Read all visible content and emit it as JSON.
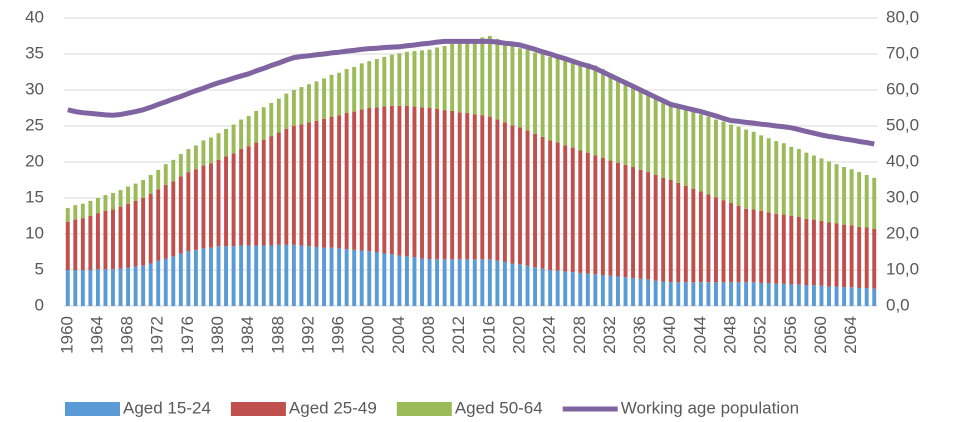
{
  "chart_data": {
    "type": "bar",
    "stacked": true,
    "categories": [
      "1960",
      null,
      null,
      null,
      "1964",
      null,
      null,
      null,
      "1968",
      null,
      null,
      null,
      "1972",
      null,
      null,
      null,
      "1976",
      null,
      null,
      null,
      "1980",
      null,
      null,
      null,
      "1984",
      null,
      null,
      null,
      "1988",
      null,
      null,
      null,
      "1992",
      null,
      null,
      null,
      "1996",
      null,
      null,
      null,
      "2000",
      null,
      null,
      null,
      "2004",
      null,
      null,
      null,
      "2008",
      null,
      null,
      null,
      "2012",
      null,
      null,
      null,
      "2016",
      null,
      null,
      null,
      "2020",
      null,
      null,
      null,
      "2024",
      null,
      null,
      null,
      "2028",
      null,
      null,
      null,
      "2032",
      null,
      null,
      null,
      "2036",
      null,
      null,
      null,
      "2040",
      null,
      null,
      null,
      "2044",
      null,
      null,
      null,
      "2048",
      null,
      null,
      null,
      "2052",
      null,
      null,
      null,
      "2056",
      null,
      null,
      null,
      "2060",
      null,
      null,
      null,
      "2064",
      null,
      null,
      null
    ],
    "series": [
      {
        "name": "Aged 15-24",
        "color": "#5b9bd5",
        "values": [
          5.0,
          5.0,
          5.0,
          5.0,
          5.1,
          5.1,
          5.1,
          5.2,
          5.3,
          5.5,
          5.6,
          5.9,
          6.3,
          6.6,
          6.9,
          7.3,
          7.6,
          7.8,
          8.0,
          8.1,
          8.3,
          8.3,
          8.3,
          8.4,
          8.4,
          8.4,
          8.4,
          8.4,
          8.5,
          8.5,
          8.5,
          8.4,
          8.3,
          8.2,
          8.1,
          8.1,
          8.0,
          7.9,
          7.8,
          7.7,
          7.6,
          7.5,
          7.3,
          7.2,
          7.0,
          6.9,
          6.8,
          6.6,
          6.5,
          6.5,
          6.5,
          6.5,
          6.5,
          6.5,
          6.5,
          6.5,
          6.5,
          6.3,
          6.1,
          5.9,
          5.8,
          5.6,
          5.4,
          5.2,
          5.0,
          4.9,
          4.8,
          4.7,
          4.6,
          4.5,
          4.4,
          4.3,
          4.2,
          4.1,
          4.0,
          3.9,
          3.8,
          3.7,
          3.5,
          3.4,
          3.3,
          3.3,
          3.3,
          3.3,
          3.3,
          3.3,
          3.3,
          3.3,
          3.3,
          3.3,
          3.3,
          3.3,
          3.2,
          3.2,
          3.1,
          3.1,
          3.0,
          3.0,
          2.9,
          2.9,
          2.8,
          2.7,
          2.7,
          2.6,
          2.6,
          2.5,
          2.5,
          2.4
        ]
      },
      {
        "name": "Aged 25-49",
        "color": "#c0504d",
        "values": [
          6.7,
          7.0,
          7.2,
          7.5,
          7.8,
          8.1,
          8.3,
          8.6,
          8.9,
          9.1,
          9.4,
          9.7,
          9.9,
          10.2,
          10.4,
          10.7,
          11.0,
          11.2,
          11.5,
          11.7,
          12.0,
          12.5,
          12.9,
          13.4,
          13.8,
          14.3,
          14.7,
          15.2,
          15.6,
          16.1,
          16.5,
          16.8,
          17.2,
          17.5,
          17.9,
          18.2,
          18.5,
          18.9,
          19.2,
          19.6,
          19.9,
          20.1,
          20.4,
          20.6,
          20.8,
          20.9,
          20.9,
          21.0,
          21.0,
          20.9,
          20.7,
          20.6,
          20.4,
          20.3,
          20.1,
          20.0,
          19.8,
          19.6,
          19.4,
          19.2,
          19.0,
          18.8,
          18.5,
          18.3,
          18.0,
          17.8,
          17.5,
          17.3,
          17.0,
          16.8,
          16.5,
          16.3,
          16.0,
          15.8,
          15.6,
          15.4,
          15.1,
          14.9,
          14.7,
          14.4,
          14.2,
          13.8,
          13.4,
          13.0,
          12.6,
          12.2,
          11.8,
          11.4,
          11.0,
          10.6,
          10.2,
          10.1,
          10.0,
          9.8,
          9.7,
          9.6,
          9.5,
          9.4,
          9.2,
          9.1,
          9.0,
          8.9,
          8.8,
          8.7,
          8.6,
          8.5,
          8.4,
          8.3
        ]
      },
      {
        "name": "Aged 50-64",
        "color": "#9bbb59",
        "values": [
          1.9,
          2.0,
          2.0,
          2.1,
          2.1,
          2.2,
          2.3,
          2.3,
          2.4,
          2.4,
          2.5,
          2.6,
          2.7,
          2.9,
          3.0,
          3.1,
          3.2,
          3.3,
          3.5,
          3.6,
          3.7,
          3.8,
          4.0,
          4.1,
          4.2,
          4.4,
          4.5,
          4.6,
          4.7,
          4.9,
          5.0,
          5.2,
          5.3,
          5.5,
          5.6,
          5.8,
          5.9,
          6.1,
          6.2,
          6.4,
          6.5,
          6.7,
          6.9,
          7.1,
          7.3,
          7.5,
          7.7,
          7.9,
          8.1,
          8.5,
          8.9,
          9.3,
          9.7,
          10.0,
          10.4,
          10.8,
          11.2,
          11.2,
          11.1,
          11.1,
          11.0,
          11.2,
          11.3,
          11.5,
          11.6,
          11.8,
          11.9,
          12.1,
          12.2,
          12.4,
          12.5,
          12.3,
          12.1,
          11.9,
          11.7,
          11.5,
          11.3,
          11.1,
          10.9,
          10.7,
          10.5,
          10.6,
          10.6,
          10.7,
          10.7,
          10.8,
          10.8,
          10.9,
          10.9,
          11.0,
          11.0,
          10.8,
          10.5,
          10.3,
          10.1,
          9.9,
          9.6,
          9.4,
          9.2,
          8.9,
          8.7,
          8.5,
          8.2,
          8.0,
          7.8,
          7.6,
          7.3,
          7.1
        ]
      },
      {
        "name": "Working age population",
        "color": "#8064a2",
        "type": "line",
        "axis": "y2",
        "values": [
          54.5,
          54.0,
          53.7,
          53.5,
          53.3,
          53.1,
          53.0,
          53.2,
          53.6,
          54.0,
          54.5,
          55.2,
          56.0,
          56.7,
          57.5,
          58.2,
          59.0,
          59.8,
          60.5,
          61.3,
          62.0,
          62.6,
          63.3,
          63.9,
          64.5,
          65.3,
          66.0,
          66.8,
          67.5,
          68.3,
          69.0,
          69.3,
          69.5,
          69.8,
          70.0,
          70.3,
          70.5,
          70.8,
          71.0,
          71.3,
          71.5,
          71.6,
          71.8,
          71.9,
          72.0,
          72.3,
          72.5,
          72.8,
          73.0,
          73.3,
          73.5,
          73.5,
          73.5,
          73.5,
          73.5,
          73.5,
          73.5,
          73.3,
          73.0,
          72.8,
          72.5,
          71.9,
          71.3,
          70.6,
          70.0,
          69.3,
          68.7,
          68.0,
          67.3,
          66.7,
          66.0,
          65.0,
          64.0,
          63.0,
          62.0,
          61.0,
          60.0,
          59.0,
          58.0,
          57.0,
          56.0,
          55.5,
          55.0,
          54.5,
          54.0,
          53.4,
          52.8,
          52.1,
          51.5,
          51.3,
          51.0,
          50.8,
          50.5,
          50.3,
          50.0,
          49.8,
          49.5,
          49.0,
          48.5,
          48.0,
          47.5,
          47.1,
          46.8,
          46.4,
          46.1,
          45.7,
          45.4,
          45.0
        ]
      }
    ],
    "ylim": [
      0,
      40
    ],
    "yticks": [
      0,
      5,
      10,
      15,
      20,
      25,
      30,
      35,
      40
    ],
    "y2lim": [
      0,
      80
    ],
    "y2ticks": [
      {
        "value": 0,
        "label": "0,0"
      },
      {
        "value": 10,
        "label": "10,0"
      },
      {
        "value": 20,
        "label": "20,0"
      },
      {
        "value": 30,
        "label": "30,0"
      },
      {
        "value": 40,
        "label": "40,0"
      },
      {
        "value": 50,
        "label": "50,0"
      },
      {
        "value": 60,
        "label": "60,0"
      },
      {
        "value": 70,
        "label": "70,0"
      },
      {
        "value": 80,
        "label": "80,0"
      }
    ],
    "grid": true,
    "legend": "bottom"
  }
}
